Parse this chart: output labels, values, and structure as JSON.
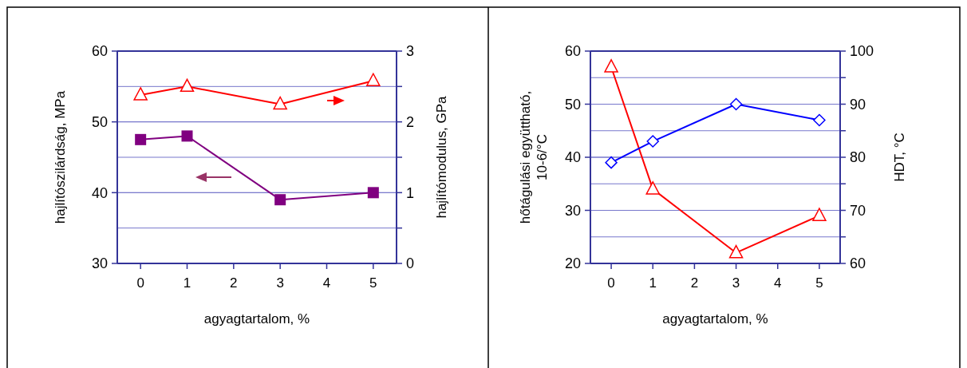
{
  "chart_data": [
    {
      "type": "line",
      "xlabel": "agyagtartalom, %",
      "ylabel": "hajlítószilárdság, MPa",
      "y2label": "hajlítómodulus, GPa",
      "x": [
        0,
        1,
        3,
        5
      ],
      "xlim": [
        -0.5,
        5.5
      ],
      "xticks": [
        0,
        1,
        2,
        3,
        4,
        5
      ],
      "ylim": [
        30,
        60
      ],
      "yticks": [
        30,
        40,
        50,
        60
      ],
      "y2lim": [
        0,
        3
      ],
      "y2ticks": [
        0,
        1,
        2,
        3,
        {
          "value": 0.5,
          "label": null
        },
        {
          "value": 1.5,
          "label": null
        },
        {
          "value": 2.5,
          "label": null
        }
      ],
      "grid": true,
      "series": [
        {
          "color": "#800080",
          "marker": "square",
          "values": [
            47.5,
            48,
            39,
            40
          ]
        },
        {
          "color": "#ff0000",
          "marker": "triangle",
          "axis": "y2",
          "values": [
            2.38,
            2.5,
            2.25,
            2.58
          ]
        }
      ]
    },
    {
      "type": "line",
      "xlabel": "agyagtartalom, %",
      "ylabel": "hőtágulási együttható, 10-6/°C",
      "y2label": "HDT, °C",
      "x": [
        0,
        1,
        3,
        5
      ],
      "xlim": [
        -0.5,
        5.5
      ],
      "xticks": [
        0,
        1,
        2,
        3,
        4,
        5
      ],
      "ylim": [
        20,
        60
      ],
      "yticks": [
        20,
        30,
        40,
        50,
        60
      ],
      "y2lim": [
        60,
        100
      ],
      "y2ticks": [
        60,
        70,
        80,
        90,
        100,
        {
          "value": 65,
          "label": null
        },
        {
          "value": 75,
          "label": null
        },
        {
          "value": 85,
          "label": null
        },
        {
          "value": 95,
          "label": null
        }
      ],
      "grid": true,
      "series": [
        {
          "color": "#ff0000",
          "marker": "triangle",
          "values": [
            57,
            34,
            22,
            29
          ]
        },
        {
          "color": "#0000ff",
          "marker": "diamond",
          "axis": "y2",
          "values": [
            79,
            83,
            90,
            87
          ]
        }
      ]
    }
  ]
}
